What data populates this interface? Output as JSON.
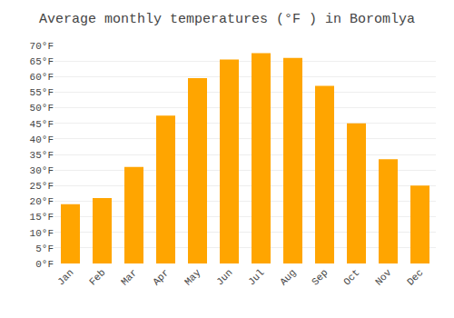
{
  "chart_data": {
    "type": "bar",
    "title": "Average monthly temperatures (°F ) in Boromlya",
    "categories": [
      "Jan",
      "Feb",
      "Mar",
      "Apr",
      "May",
      "Jun",
      "Jul",
      "Aug",
      "Sep",
      "Oct",
      "Nov",
      "Dec"
    ],
    "values": [
      19,
      21,
      31,
      47.5,
      59.5,
      65.5,
      67.5,
      66,
      57,
      45,
      33.5,
      25
    ],
    "color": "#FFA500",
    "ylim": [
      0,
      70
    ],
    "yticks": [
      {
        "value": 0,
        "label": "0°F"
      },
      {
        "value": 5,
        "label": "5°F"
      },
      {
        "value": 10,
        "label": "10°F"
      },
      {
        "value": 15,
        "label": "15°F"
      },
      {
        "value": 20,
        "label": "20°F"
      },
      {
        "value": 25,
        "label": "25°F"
      },
      {
        "value": 30,
        "label": "30°F"
      },
      {
        "value": 35,
        "label": "35°F"
      },
      {
        "value": 40,
        "label": "40°F"
      },
      {
        "value": 45,
        "label": "45°F"
      },
      {
        "value": 50,
        "label": "50°F"
      },
      {
        "value": 55,
        "label": "55°F"
      },
      {
        "value": 60,
        "label": "60°F"
      },
      {
        "value": 65,
        "label": "65°F"
      },
      {
        "value": 70,
        "label": "70°F"
      }
    ],
    "grid": true
  }
}
